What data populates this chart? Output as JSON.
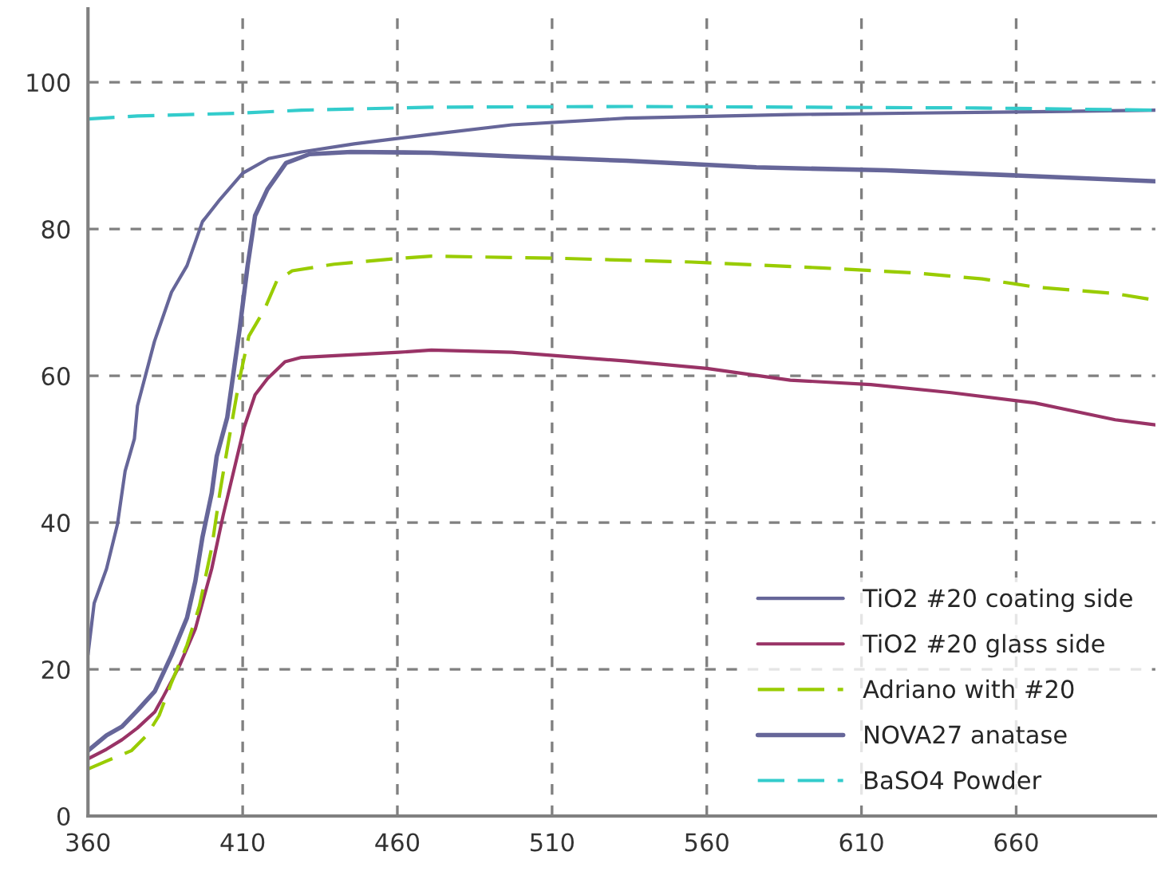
{
  "chart_data": {
    "type": "line",
    "xlim": [
      360,
      705
    ],
    "xticks": [
      360,
      410,
      460,
      510,
      560,
      610,
      660
    ],
    "ylim": [
      0,
      110
    ],
    "yticks": [
      0,
      20,
      40,
      60,
      80,
      100
    ],
    "grid": true,
    "legend": "lower right",
    "marker": "none",
    "series": [
      {
        "name": "TiO2 #20 coating side",
        "color": "#666699",
        "line_style": "solid",
        "x": [
          360,
          362,
          366,
          369.5,
          372,
          375,
          376,
          381.5,
          387,
          392,
          397,
          402.6,
          410,
          418.4,
          429,
          446,
          471,
          497,
          534,
          587,
          628,
          671,
          705
        ],
        "values": [
          22,
          29,
          33.7,
          39.7,
          47,
          51.4,
          55.9,
          64.7,
          71.4,
          75,
          81,
          84,
          87.6,
          89.6,
          90.5,
          91.6,
          92.9,
          94.2,
          95.1,
          95.6,
          95.8,
          96,
          96.2
        ]
      },
      {
        "name": "TiO2 #20 glass side",
        "color": "#993366",
        "line_style": "solid",
        "x": [
          360,
          366,
          371,
          376,
          381.6,
          384,
          389.5,
          394.7,
          400,
          403.7,
          408,
          410.5,
          414,
          418,
          423.7,
          429,
          460.5,
          471,
          497,
          534,
          560,
          587,
          613,
          639,
          666,
          692,
          705
        ],
        "values": [
          7.8,
          9.1,
          10.4,
          12,
          14.2,
          16,
          20.4,
          25.5,
          33.7,
          41,
          48.6,
          53,
          57.4,
          59.6,
          61.9,
          62.5,
          63.2,
          63.5,
          63.2,
          62,
          61,
          59.4,
          58.8,
          57.7,
          56.3,
          54,
          53.3
        ]
      },
      {
        "name": "Adriano with #20",
        "color": "#99cc00",
        "line_style": "dashed",
        "x": [
          360,
          366,
          374,
          379,
          383,
          387,
          392,
          396,
          400,
          402.6,
          405,
          409,
          412,
          417,
          421,
          426,
          439.5,
          460.5,
          471,
          513,
          555,
          597,
          628,
          649,
          666,
          692,
          705
        ],
        "values": [
          6.4,
          7.5,
          8.9,
          11,
          13.7,
          18.2,
          23.3,
          28.6,
          36.6,
          44,
          50,
          59.6,
          65.4,
          69,
          72.9,
          74.3,
          75.2,
          76,
          76.3,
          76,
          75.5,
          74.7,
          74,
          73.2,
          72.1,
          71.2,
          70.3
        ]
      },
      {
        "name": "NOVA27 anatase",
        "color": "#666699",
        "line_style": "solid",
        "x": [
          360,
          366,
          371,
          376,
          381.6,
          387,
          392,
          394.7,
          397,
          400,
          401.6,
          405,
          409,
          411.6,
          414,
          418,
          424,
          431.6,
          445,
          471,
          497,
          534,
          576,
          618,
          660,
          705
        ],
        "values": [
          8.9,
          11,
          12.2,
          14.4,
          17,
          21.9,
          27,
          32,
          38,
          44,
          49,
          54.3,
          66.3,
          75,
          81.8,
          85.4,
          89,
          90.2,
          90.5,
          90.4,
          89.9,
          89.3,
          88.4,
          88,
          87.3,
          86.5
        ]
      },
      {
        "name": "BaSO4 Powder",
        "color": "#33cccc",
        "line_style": "dashed",
        "x": [
          360,
          376,
          410,
          429,
          471,
          534,
          647,
          705
        ],
        "values": [
          95,
          95.4,
          95.8,
          96.2,
          96.6,
          96.7,
          96.5,
          96.2
        ]
      }
    ]
  }
}
